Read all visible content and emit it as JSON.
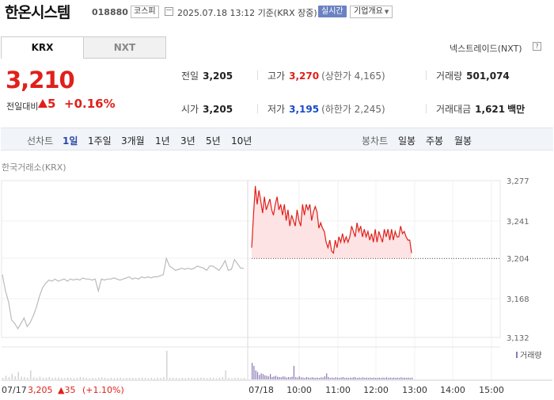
{
  "header": {
    "name": "한온시스템",
    "code": "018880",
    "market": "코스피",
    "timestamp": "2025.07.18 13:12 기준(KRX 장중)",
    "realtime_label": "실시간",
    "corp_label": "기업개요"
  },
  "tabs": [
    {
      "label": "KRX",
      "active": true
    },
    {
      "label": "NXT",
      "active": false
    }
  ],
  "nxt_link": "넥스트레이드(NXT)",
  "price": {
    "current": "3,210",
    "change_label": "전일대비",
    "change": "5",
    "change_pct": "+0.16%",
    "direction": "up"
  },
  "stats": {
    "prev_label": "전일",
    "prev": "3,205",
    "high_label": "고가",
    "high": "3,270",
    "upper_limit": "(상한가 4,165)",
    "volume_label": "거래량",
    "volume": "501,074",
    "open_label": "시가",
    "open": "3,205",
    "low_label": "저가",
    "low": "3,195",
    "lower_limit": "(하한가 2,245)",
    "amount_label": "거래대금",
    "amount": "1,621",
    "amount_unit": "백만"
  },
  "periods": {
    "line_label": "선차트",
    "line": [
      "1일",
      "1주일",
      "3개월",
      "1년",
      "3년",
      "5년",
      "10년"
    ],
    "active": "1일",
    "candle_label": "봉차트",
    "candle": [
      "일봉",
      "주봉",
      "월봉"
    ]
  },
  "exchange_label": "한국거래소(KRX)",
  "colors": {
    "up": "#e0201b",
    "down": "#1a4bc8",
    "prev_line": "#bbbbbb",
    "volume": "#8a78b6"
  },
  "chart_data": {
    "type": "line",
    "y_ticks": [
      "3,277",
      "3,241",
      "3,204",
      "3,168",
      "3,132"
    ],
    "ylim": [
      3132,
      3277
    ],
    "prev_close": 3205,
    "volume_label": "거래량",
    "x_ticks": [
      "07/18",
      "10:00",
      "11:00",
      "12:00",
      "13:00",
      "14:00",
      "15:00"
    ],
    "footer": {
      "date": "07/17",
      "price": "3,205",
      "change": "▲35",
      "pct": "(+1.10%)"
    },
    "prev_day_series": [
      3190,
      3175,
      3165,
      3148,
      3145,
      3140,
      3145,
      3150,
      3142,
      3146,
      3152,
      3160,
      3170,
      3178,
      3182,
      3185,
      3184,
      3186,
      3184,
      3185,
      3186,
      3184,
      3186,
      3185,
      3186,
      3185,
      3187,
      3186,
      3186,
      3185,
      3186,
      3175,
      3186,
      3185,
      3186,
      3186,
      3187,
      3186,
      3185,
      3186,
      3187,
      3188,
      3186,
      3187,
      3186,
      3188,
      3187,
      3188,
      3187,
      3188,
      3188,
      3189,
      3190,
      3205,
      3198,
      3196,
      3194,
      3195,
      3196,
      3195,
      3196,
      3195,
      3196,
      3198,
      3197,
      3196,
      3194,
      3198,
      3198,
      3196,
      3194,
      3198,
      3203,
      3194,
      3195,
      3204,
      3200,
      3196,
      3196
    ],
    "today_series": [
      3215,
      3245,
      3272,
      3255,
      3268,
      3258,
      3247,
      3262,
      3250,
      3255,
      3260,
      3250,
      3245,
      3255,
      3262,
      3250,
      3255,
      3245,
      3255,
      3240,
      3250,
      3235,
      3245,
      3240,
      3235,
      3250,
      3240,
      3235,
      3255,
      3245,
      3255,
      3250,
      3255,
      3240,
      3248,
      3253,
      3248,
      3233,
      3238,
      3233,
      3230,
      3220,
      3215,
      3222,
      3212,
      3210,
      3222,
      3215,
      3225,
      3220,
      3228,
      3220,
      3225,
      3220,
      3225,
      3235,
      3230,
      3225,
      3238,
      3230,
      3235,
      3225,
      3232,
      3225,
      3230,
      3222,
      3228,
      3220,
      3232,
      3220,
      3230,
      3225,
      3220,
      3232,
      3225,
      3232,
      3222,
      3232,
      3222,
      3230,
      3225,
      3225,
      3235,
      3228,
      3230,
      3225,
      3222,
      3222,
      3210
    ],
    "prev_day_volume": [
      0.05,
      0.12,
      0.08,
      0.18,
      0.1,
      0.25,
      0.09,
      0.08,
      0.06,
      0.3,
      0.07,
      0.05,
      0.09,
      0.05,
      0.06,
      0.08,
      0.05,
      0.06,
      0.07,
      0.05,
      0.04,
      0.06,
      0.05,
      0.04,
      0.05,
      0.08,
      0.06,
      0.05,
      0.04,
      0.05,
      0.04,
      0.06,
      0.07,
      0.05,
      0.04,
      0.05,
      0.04,
      0.05,
      0.06,
      0.04,
      0.05,
      0.06,
      0.05,
      0.04,
      0.05,
      0.06,
      0.05,
      0.04,
      0.05,
      0.04,
      0.06,
      0.05,
      0.08,
      0.95,
      0.05,
      0.06,
      0.05,
      0.04,
      0.05,
      0.04,
      0.06,
      0.05,
      0.04,
      0.05,
      0.06,
      0.05,
      0.04,
      0.06,
      0.05,
      0.04,
      0.06,
      0.08,
      0.3,
      0.05,
      0.04,
      0.06,
      0.05,
      0.04,
      0.05
    ],
    "today_volume": [
      0.55,
      0.45,
      0.3,
      0.25,
      0.15,
      0.2,
      0.18,
      0.14,
      0.12,
      0.1,
      0.18,
      0.08,
      0.1,
      0.12,
      0.09,
      0.08,
      0.07,
      0.1,
      0.09,
      0.06,
      0.08,
      0.07,
      0.09,
      0.45,
      0.08,
      0.06,
      0.1,
      0.07,
      0.06,
      0.05,
      0.08,
      0.06,
      0.05,
      0.07,
      0.06,
      0.05,
      0.06,
      0.05,
      0.07,
      0.06,
      0.1,
      0.2,
      0.08,
      0.05,
      0.06,
      0.05,
      0.07,
      0.06,
      0.05,
      0.06,
      0.08,
      0.05,
      0.06,
      0.05,
      0.06,
      0.05,
      0.08,
      0.06,
      0.05,
      0.06,
      0.05,
      0.07,
      0.05,
      0.06,
      0.05,
      0.06,
      0.05,
      0.06,
      0.05,
      0.05,
      0.06,
      0.05,
      0.06,
      0.05,
      0.07,
      0.05,
      0.06,
      0.05,
      0.06,
      0.05,
      0.06,
      0.05,
      0.07,
      0.05,
      0.06,
      0.05,
      0.06,
      0.05,
      0.06
    ]
  }
}
